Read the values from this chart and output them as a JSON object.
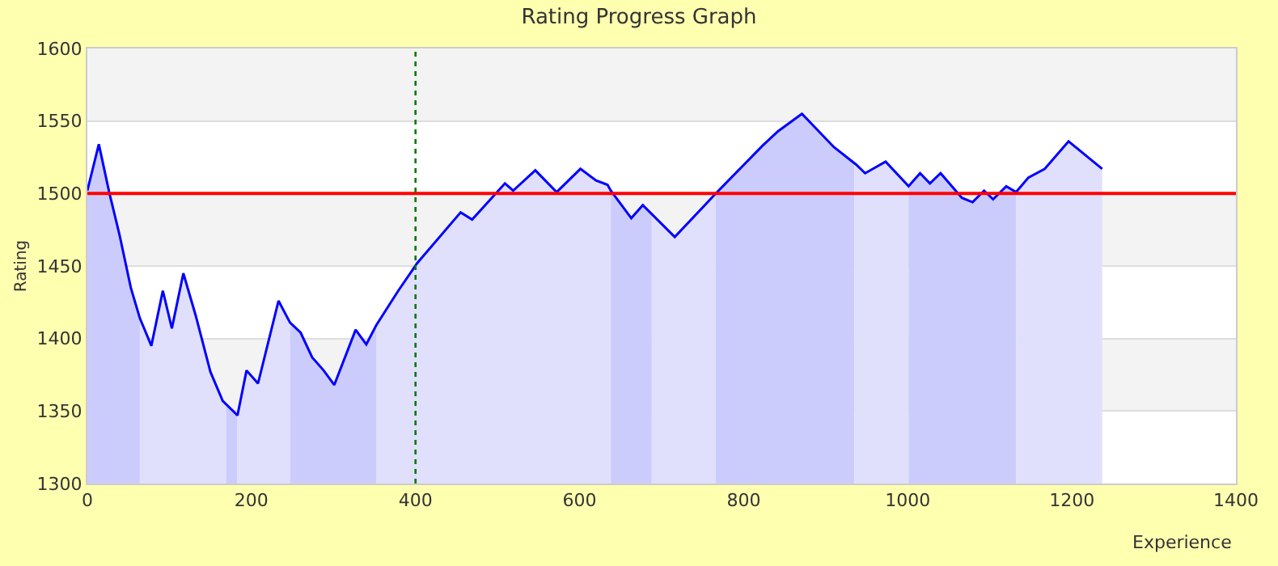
{
  "chart_data": {
    "type": "area",
    "title": "Rating Progress Graph",
    "xlabel": "Experience",
    "ylabel": "Rating",
    "x": [
      0,
      14,
      27,
      39,
      53,
      64,
      78,
      92,
      103,
      117,
      132,
      150,
      165,
      183,
      194,
      208,
      233,
      247,
      260,
      274,
      288,
      301,
      327,
      340,
      352,
      379,
      402,
      455,
      469,
      509,
      519,
      546,
      572,
      601,
      620,
      634,
      638,
      663,
      677,
      716,
      766,
      823,
      842,
      871,
      910,
      937,
      948,
      973,
      1001,
      1015,
      1027,
      1040,
      1066,
      1079,
      1093,
      1104,
      1120,
      1132,
      1147,
      1167,
      1196,
      1237
    ],
    "series": [
      {
        "color": "#ccccfc",
        "x": [
          0,
          14,
          27,
          39,
          53,
          64
        ],
        "values": [
          1502,
          1534,
          1500,
          1472,
          1435,
          1414
        ]
      },
      {
        "color": "#e0e0fc",
        "x": [
          64,
          78,
          92,
          103,
          117,
          132,
          150,
          165,
          169
        ],
        "values": [
          1414,
          1395,
          1433,
          1407,
          1445,
          1416,
          1377,
          1357,
          1355
        ]
      },
      {
        "color": "#ccccfc",
        "x": [
          169,
          183
        ],
        "values": [
          1355,
          1347
        ]
      },
      {
        "color": "#e0e0fc",
        "x": [
          183,
          194,
          208,
          233,
          247
        ],
        "values": [
          1347,
          1378,
          1369,
          1426,
          1411
        ]
      },
      {
        "color": "#ccccfc",
        "x": [
          247,
          260,
          274,
          288,
          301,
          327,
          340,
          352
        ],
        "values": [
          1411,
          1404,
          1387,
          1378,
          1368,
          1406,
          1396,
          1409
        ]
      },
      {
        "color": "#e0e0fc",
        "x": [
          352,
          379,
          402,
          455,
          469,
          509,
          519,
          546,
          572,
          601,
          620,
          634,
          638
        ],
        "values": [
          1409,
          1433,
          1452,
          1487,
          1482,
          1507,
          1502,
          1516,
          1501,
          1517,
          1509,
          1506,
          1502
        ]
      },
      {
        "color": "#ccccfc",
        "x": [
          638,
          663,
          677,
          688
        ],
        "values": [
          1502,
          1483,
          1492,
          1486
        ]
      },
      {
        "color": "#e0e0fc",
        "x": [
          688,
          716,
          766
        ],
        "values": [
          1486,
          1470,
          1500
        ]
      },
      {
        "color": "#ccccfc",
        "x": [
          766,
          823,
          842,
          871,
          910,
          935
        ],
        "values": [
          1500,
          1533,
          1543,
          1555,
          1532,
          1521
        ]
      },
      {
        "color": "#e0e0fc",
        "x": [
          935,
          937,
          948,
          973,
          1001
        ],
        "values": [
          1521,
          1520,
          1514,
          1522,
          1505
        ]
      },
      {
        "color": "#ccccfc",
        "x": [
          1001,
          1015,
          1027,
          1040,
          1066,
          1079,
          1093,
          1104,
          1120,
          1132
        ],
        "values": [
          1505,
          1514,
          1507,
          1514,
          1497,
          1494,
          1502,
          1496,
          1505,
          1501
        ]
      },
      {
        "color": "#e0e0fc",
        "x": [
          1132,
          1147,
          1167,
          1196,
          1237
        ],
        "values": [
          1501,
          1511,
          1517,
          1536,
          1517
        ]
      },
      {
        "type": "line",
        "color": "#0000ff",
        "values": [
          1502,
          1534,
          1500,
          1472,
          1435,
          1414,
          1395,
          1433,
          1407,
          1445,
          1416,
          1377,
          1357,
          1347,
          1378,
          1369,
          1426,
          1411,
          1404,
          1387,
          1378,
          1368,
          1406,
          1396,
          1409,
          1433,
          1452,
          1487,
          1482,
          1507,
          1502,
          1516,
          1501,
          1517,
          1509,
          1506,
          1502,
          1483,
          1492,
          1470,
          1500,
          1533,
          1543,
          1555,
          1532,
          1520,
          1514,
          1522,
          1505,
          1514,
          1507,
          1514,
          1497,
          1494,
          1502,
          1496,
          1505,
          1501,
          1511,
          1517,
          1536,
          1517
        ]
      }
    ],
    "xlim": [
      0,
      1400
    ],
    "xticks": [
      0,
      200,
      400,
      600,
      800,
      1000,
      1200,
      1400
    ],
    "ylim": [
      1300,
      1600
    ],
    "yticks": [
      1300,
      1350,
      1400,
      1450,
      1500,
      1550,
      1600
    ],
    "grid": "y",
    "marker": "none",
    "ref_lines": [
      {
        "axis": "y",
        "value": 1500,
        "color": "#ff0000",
        "line_style": "solid"
      },
      {
        "axis": "x",
        "value": 400,
        "color": "#007700",
        "line_style": "dotted"
      }
    ]
  }
}
